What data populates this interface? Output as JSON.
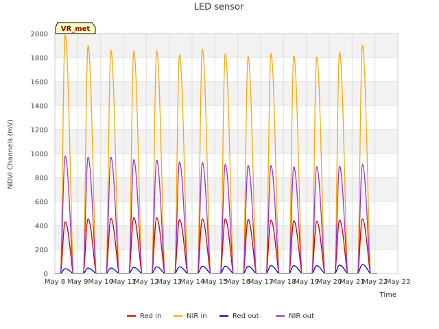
{
  "chart_data": {
    "type": "line",
    "title": "LED sensor",
    "xlabel": "Time",
    "ylabel": "NDVI Channels (mV)",
    "ylim": [
      0,
      2000
    ],
    "yticks": [
      0,
      200,
      400,
      600,
      800,
      1000,
      1200,
      1400,
      1600,
      1800,
      2000
    ],
    "xlim": [
      0,
      15
    ],
    "xticks": [
      {
        "value": 0,
        "label": "May 8"
      },
      {
        "value": 1,
        "label": "May 9"
      },
      {
        "value": 2,
        "label": "May 10"
      },
      {
        "value": 3,
        "label": "May 11"
      },
      {
        "value": 4,
        "label": "May 12"
      },
      {
        "value": 5,
        "label": "May 13"
      },
      {
        "value": 6,
        "label": "May 14"
      },
      {
        "value": 7,
        "label": "May 15"
      },
      {
        "value": 8,
        "label": "May 16"
      },
      {
        "value": 9,
        "label": "May 17"
      },
      {
        "value": 10,
        "label": "May 18"
      },
      {
        "value": 11,
        "label": "May 19"
      },
      {
        "value": 12,
        "label": "May 20"
      },
      {
        "value": 13,
        "label": "May 21"
      },
      {
        "value": 14,
        "label": "May 22"
      },
      {
        "value": 15,
        "label": "May 23"
      }
    ],
    "badge": "VR_met",
    "grid": true,
    "legend_position": "bottom",
    "series": [
      {
        "name": "Red in",
        "color": "#cc0000",
        "peaks": [
          430,
          455,
          460,
          465,
          465,
          450,
          455,
          455,
          450,
          445,
          440,
          435,
          445,
          455
        ]
      },
      {
        "name": "NIR in",
        "color": "#ffa500",
        "peaks": [
          1990,
          1900,
          1860,
          1855,
          1855,
          1825,
          1870,
          1830,
          1810,
          1835,
          1815,
          1805,
          1845,
          1900
        ]
      },
      {
        "name": "Red out",
        "color": "#0000cc",
        "peaks": [
          40,
          45,
          45,
          50,
          55,
          55,
          60,
          60,
          60,
          65,
          65,
          65,
          70,
          75
        ]
      },
      {
        "name": "NIR out",
        "color": "#9932cc",
        "peaks": [
          980,
          970,
          970,
          950,
          945,
          930,
          925,
          910,
          900,
          900,
          890,
          890,
          895,
          910
        ]
      }
    ],
    "day_cycle": {
      "start": 0.25,
      "peak": 0.45,
      "end": 0.8
    }
  }
}
